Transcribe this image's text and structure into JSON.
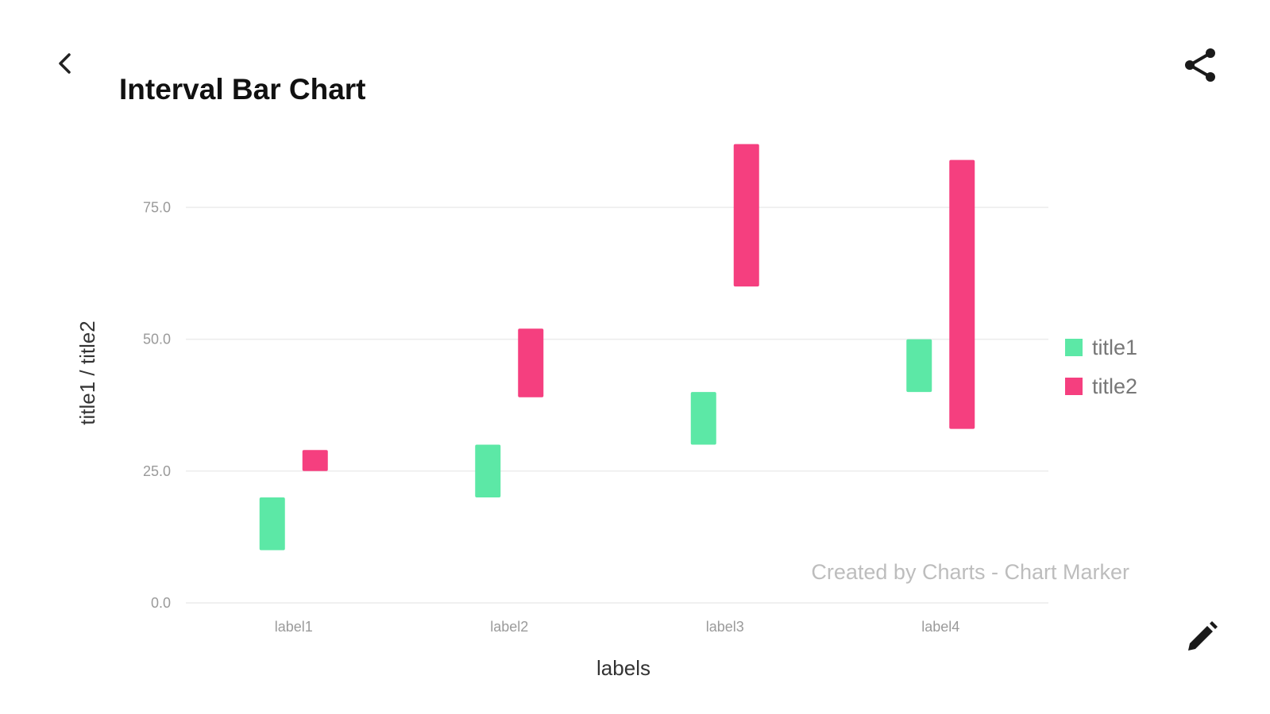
{
  "header": {
    "title": "Interval Bar Chart",
    "back_icon": "chevron-left-icon",
    "share_icon": "share-icon",
    "edit_icon": "pencil-icon"
  },
  "chart_data": {
    "type": "bar",
    "subtype": "interval",
    "title": "Interval Bar Chart",
    "xlabel": "labels",
    "ylabel": "title1 / title2",
    "categories": [
      "label1",
      "label2",
      "label3",
      "label4"
    ],
    "ylim": [
      0,
      90
    ],
    "yticks": [
      0,
      25,
      50,
      75
    ],
    "ytick_labels": [
      "0.0",
      "25.0",
      "50.0",
      "75.0"
    ],
    "grid": true,
    "legend_position": "right",
    "series": [
      {
        "name": "title1",
        "color": "#5ce8a6",
        "intervals": [
          [
            10,
            20
          ],
          [
            20,
            30
          ],
          [
            30,
            40
          ],
          [
            40,
            50
          ]
        ]
      },
      {
        "name": "title2",
        "color": "#f53f7f",
        "intervals": [
          [
            25,
            29
          ],
          [
            39,
            52
          ],
          [
            60,
            87
          ],
          [
            33,
            84
          ]
        ]
      }
    ],
    "watermark": "Created by Charts - Chart Marker"
  }
}
